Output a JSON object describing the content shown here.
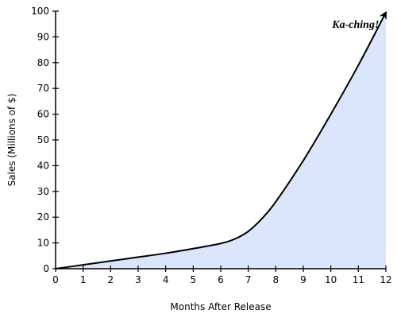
{
  "chart_data": {
    "type": "area",
    "title": "",
    "xlabel": "Months After Release",
    "ylabel": "Sales (Millions of $)",
    "xlim": [
      0,
      12
    ],
    "ylim": [
      0,
      100
    ],
    "x_ticks": [
      0,
      1,
      2,
      3,
      4,
      5,
      6,
      7,
      8,
      9,
      10,
      11,
      12
    ],
    "y_ticks": [
      0,
      10,
      20,
      30,
      40,
      50,
      60,
      70,
      80,
      90,
      100
    ],
    "grid": false,
    "legend": "none",
    "series": [
      {
        "x": [
          0,
          1,
          2,
          3,
          4,
          5,
          6,
          6.5,
          7,
          7.5,
          8,
          9,
          10,
          11,
          12
        ],
        "values": [
          0,
          1.5,
          3,
          4.5,
          6,
          7.8,
          9.8,
          11.5,
          14.5,
          19.5,
          26,
          42,
          60,
          79,
          99.5
        ],
        "line_color": "#000000",
        "fill_color": "#dbe6fb",
        "end_marker": "arrow"
      }
    ],
    "annotations": [
      {
        "text": "Ka-ching!",
        "x": 10.9,
        "y": 93.5
      }
    ]
  }
}
